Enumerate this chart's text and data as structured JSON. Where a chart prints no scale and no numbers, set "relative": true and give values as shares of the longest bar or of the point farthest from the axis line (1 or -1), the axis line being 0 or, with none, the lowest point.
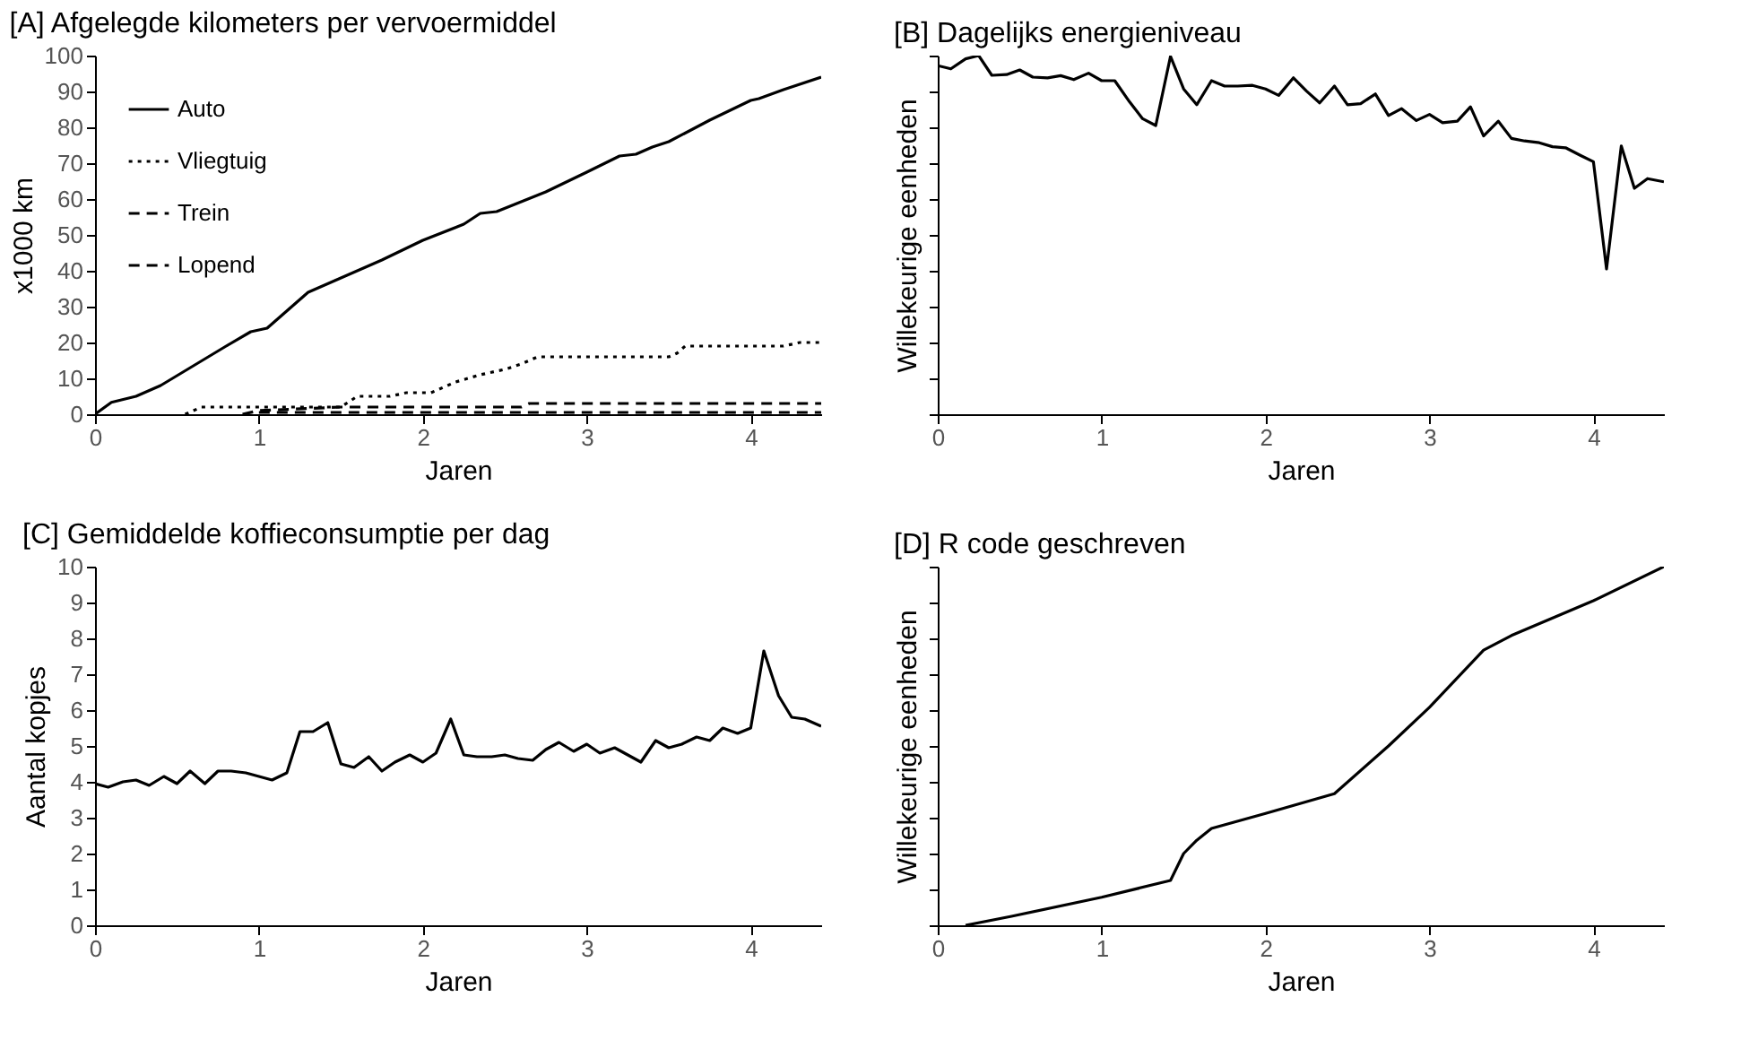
{
  "chart_data": [
    {
      "type": "line",
      "title": "[A] Afgelegde kilometers per vervoermiddel",
      "xlabel": "Jaren",
      "ylabel": "x1000 km",
      "xlim": [
        0,
        4.43
      ],
      "xticks": [
        0,
        1,
        2,
        3,
        4
      ],
      "ylim": [
        0,
        100
      ],
      "yticks": [
        0,
        10,
        20,
        30,
        40,
        50,
        60,
        70,
        80,
        90,
        100
      ],
      "grid": false,
      "legend": "top left",
      "series": [
        {
          "name": "Auto",
          "color": "#000000",
          "line_style": "solid",
          "x": [
            0,
            0.1,
            0.25,
            0.4,
            0.6,
            0.8,
            0.95,
            1.05,
            1.15,
            1.3,
            1.5,
            1.75,
            2.0,
            2.25,
            2.35,
            2.45,
            2.75,
            3.0,
            3.2,
            3.3,
            3.4,
            3.5,
            3.75,
            4.0,
            4.05,
            4.2,
            4.43
          ],
          "values": [
            0,
            3.3,
            5,
            8,
            13.5,
            19,
            23,
            24,
            28,
            34,
            38,
            43,
            48.5,
            53,
            56,
            56.5,
            62,
            67.5,
            72,
            72.5,
            74.5,
            76,
            82,
            87.5,
            88,
            90.5,
            94
          ]
        },
        {
          "name": "Vliegtuig",
          "color": "#000000",
          "line_style": "dotted",
          "x": [
            0.55,
            0.65,
            1.5,
            1.6,
            1.8,
            1.9,
            2.05,
            2.2,
            2.35,
            2.5,
            2.6,
            2.7,
            3.5,
            3.55,
            3.6,
            4.2,
            4.3,
            4.43
          ],
          "values": [
            0,
            2,
            2,
            5,
            5,
            6,
            6,
            9,
            11,
            12.5,
            14,
            16,
            16,
            17,
            19,
            19,
            20,
            20
          ]
        },
        {
          "name": "Trein",
          "color": "#000000",
          "line_style": "dashed",
          "x": [
            0.9,
            1.0,
            1.5,
            2.6,
            2.65,
            4.43
          ],
          "values": [
            0,
            1,
            2,
            2,
            3,
            3
          ]
        },
        {
          "name": "Lopend",
          "color": "#000000",
          "line_style": "dashed",
          "x": [
            1.0,
            4.43
          ],
          "values": [
            0.5,
            0.5
          ]
        }
      ]
    },
    {
      "type": "line",
      "title": "[B] Dagelijks energieniveau",
      "xlabel": "Jaren",
      "ylabel": "Willekeurige eenheden",
      "xlim": [
        0,
        4.43
      ],
      "xticks": [
        0,
        1,
        2,
        3,
        4
      ],
      "relative": true,
      "grid": false,
      "line_style": "solid",
      "color": "#000000",
      "x": [
        0,
        0.08,
        0.17,
        0.25,
        0.33,
        0.42,
        0.5,
        0.58,
        0.67,
        0.75,
        0.83,
        0.92,
        1.0,
        1.08,
        1.17,
        1.25,
        1.33,
        1.42,
        1.5,
        1.58,
        1.67,
        1.75,
        1.83,
        1.92,
        2.0,
        2.08,
        2.17,
        2.25,
        2.33,
        2.42,
        2.5,
        2.58,
        2.67,
        2.75,
        2.83,
        2.92,
        3.0,
        3.08,
        3.17,
        3.25,
        3.33,
        3.42,
        3.5,
        3.58,
        3.67,
        3.75,
        3.83,
        3.92,
        4.0,
        4.08,
        4.17,
        4.25,
        4.33,
        4.43
      ],
      "values": [
        0.972,
        0.963,
        0.991,
        1.0,
        0.945,
        0.947,
        0.96,
        0.94,
        0.938,
        0.944,
        0.933,
        0.951,
        0.93,
        0.93,
        0.871,
        0.824,
        0.805,
        0.998,
        0.907,
        0.863,
        0.93,
        0.915,
        0.915,
        0.917,
        0.907,
        0.889,
        0.938,
        0.901,
        0.868,
        0.915,
        0.863,
        0.866,
        0.893,
        0.833,
        0.852,
        0.819,
        0.836,
        0.813,
        0.817,
        0.857,
        0.776,
        0.817,
        0.769,
        0.762,
        0.757,
        0.746,
        0.743,
        0.722,
        0.704,
        0.405,
        0.748,
        0.63,
        0.657,
        0.648
      ]
    },
    {
      "type": "line",
      "title": "[C] Gemiddelde koffieconsumptie per dag",
      "xlabel": "Jaren",
      "ylabel": "Aantal kopjes",
      "xlim": [
        0,
        4.43
      ],
      "xticks": [
        0,
        1,
        2,
        3,
        4
      ],
      "ylim": [
        0,
        10
      ],
      "yticks": [
        0,
        1,
        2,
        3,
        4,
        5,
        6,
        7,
        8,
        9,
        10
      ],
      "grid": false,
      "line_style": "solid",
      "color": "#000000",
      "x": [
        0,
        0.08,
        0.17,
        0.25,
        0.33,
        0.42,
        0.5,
        0.58,
        0.67,
        0.75,
        0.83,
        0.92,
        1.0,
        1.08,
        1.17,
        1.25,
        1.33,
        1.42,
        1.5,
        1.58,
        1.67,
        1.75,
        1.83,
        1.92,
        2.0,
        2.08,
        2.17,
        2.25,
        2.33,
        2.42,
        2.5,
        2.58,
        2.67,
        2.75,
        2.83,
        2.92,
        3.0,
        3.08,
        3.17,
        3.25,
        3.33,
        3.42,
        3.5,
        3.58,
        3.67,
        3.75,
        3.83,
        3.92,
        4.0,
        4.08,
        4.17,
        4.25,
        4.33,
        4.43
      ],
      "values": [
        3.95,
        3.85,
        4.0,
        4.05,
        3.9,
        4.15,
        3.95,
        4.3,
        3.95,
        4.3,
        4.3,
        4.25,
        4.15,
        4.05,
        4.25,
        5.4,
        5.4,
        5.65,
        4.5,
        4.4,
        4.7,
        4.3,
        4.55,
        4.75,
        4.55,
        4.8,
        5.75,
        4.75,
        4.7,
        4.7,
        4.75,
        4.65,
        4.6,
        4.9,
        5.1,
        4.85,
        5.05,
        4.8,
        4.95,
        4.75,
        4.55,
        5.15,
        4.95,
        5.05,
        5.25,
        5.15,
        5.5,
        5.35,
        5.5,
        7.65,
        6.4,
        5.8,
        5.75,
        5.55
      ]
    },
    {
      "type": "line",
      "title": "[D] R code geschreven",
      "xlabel": "Jaren",
      "ylabel": "Willekeurige eenheden",
      "xlim": [
        0,
        4.43
      ],
      "xticks": [
        0,
        1,
        2,
        3,
        4
      ],
      "relative": true,
      "grid": false,
      "line_style": "solid",
      "color": "#000000",
      "x": [
        0.17,
        0.45,
        1.0,
        1.42,
        1.5,
        1.58,
        1.67,
        2.0,
        2.42,
        2.75,
        3.0,
        3.33,
        3.5,
        4.0,
        4.43
      ],
      "values": [
        0,
        0.025,
        0.078,
        0.125,
        0.2,
        0.237,
        0.27,
        0.312,
        0.367,
        0.5,
        0.608,
        0.767,
        0.808,
        0.905,
        1.0
      ]
    }
  ]
}
